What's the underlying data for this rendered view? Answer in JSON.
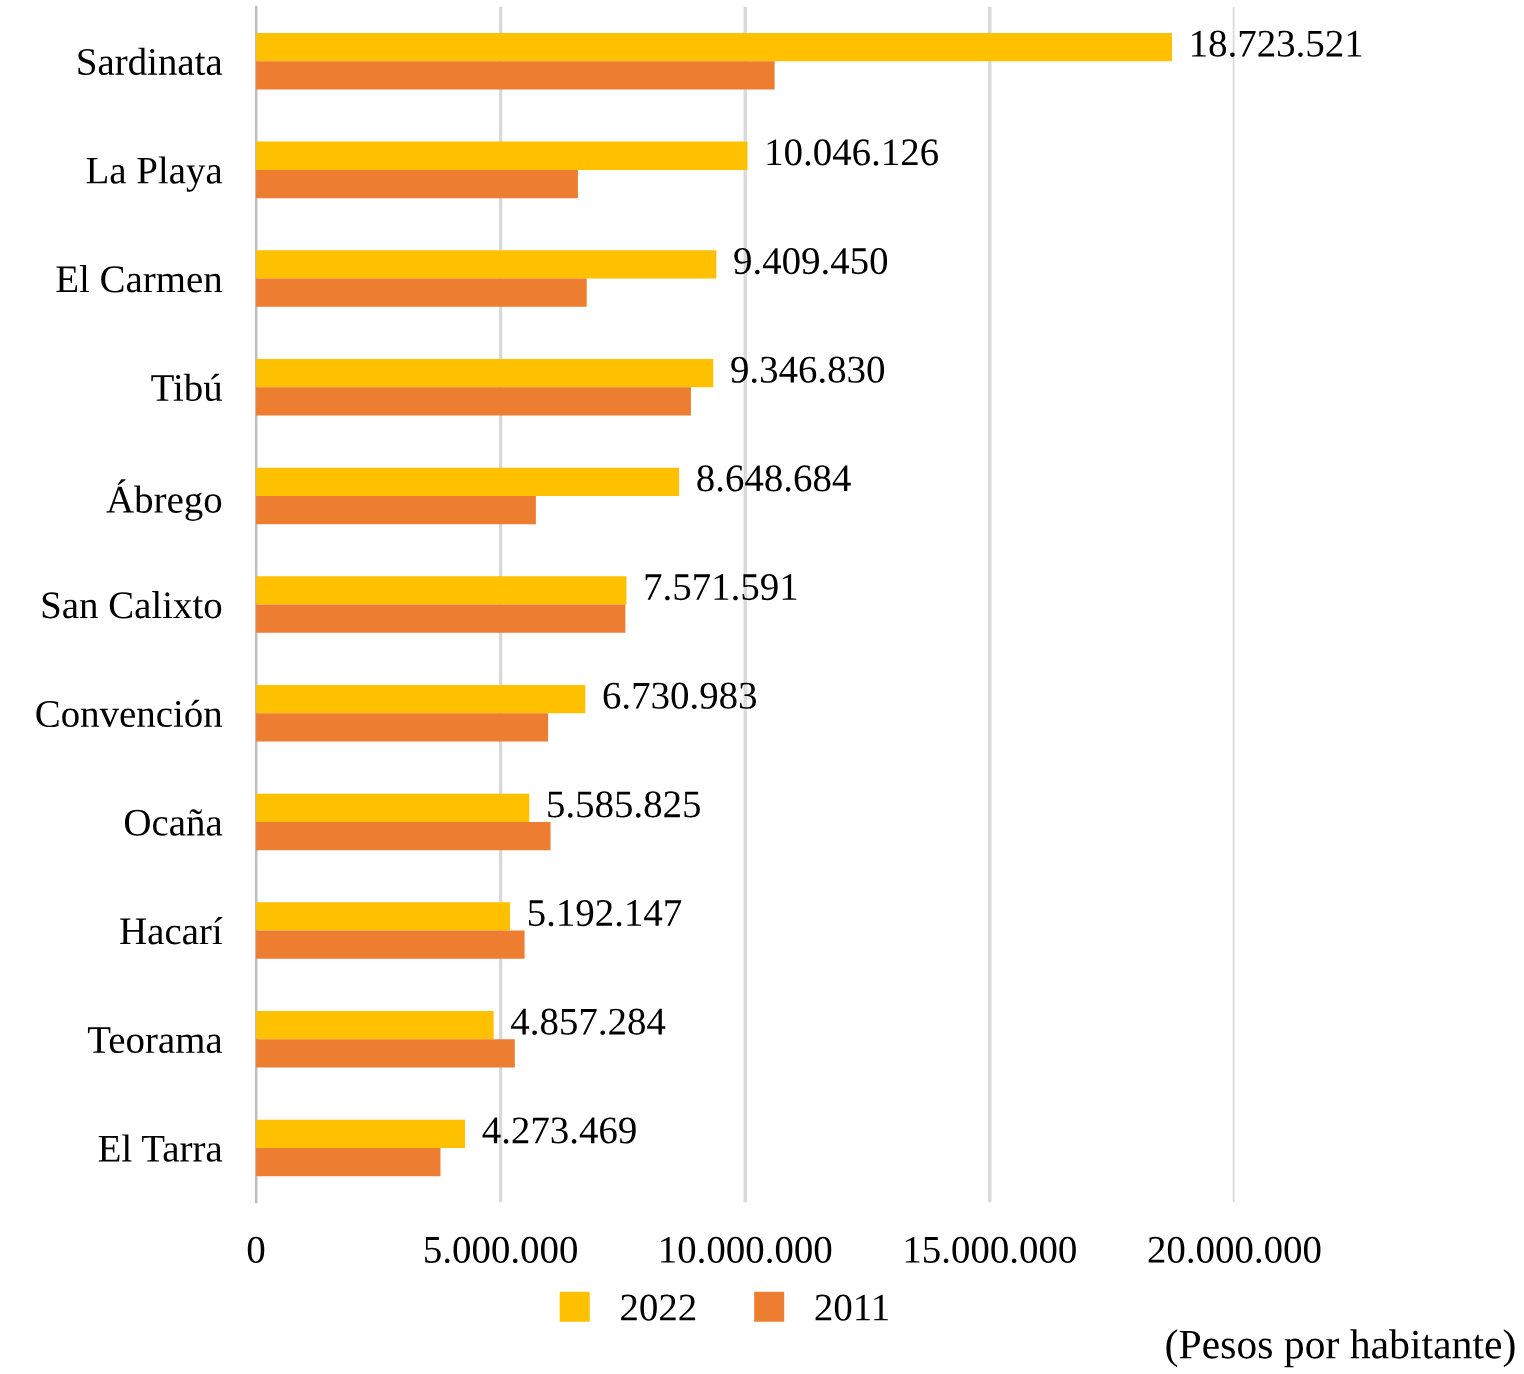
{
  "chart_data": {
    "type": "bar",
    "orientation": "horizontal",
    "categories": [
      "Sardinata",
      "La Playa",
      "El Carmen",
      "Tibú",
      "Ábrego",
      "San Calixto",
      "Convención",
      "Ocaña",
      "Hacarí",
      "Teorama",
      "El Tarra"
    ],
    "series": [
      {
        "name": "2022",
        "color": "#ffc000",
        "values": [
          18723521,
          10046126,
          9409450,
          9346830,
          8648684,
          7571591,
          6730983,
          5585825,
          5192147,
          4857284,
          4273469
        ],
        "value_labels": [
          "18.723.521",
          "10.046.126",
          "9.409.450",
          "9.346.830",
          "8.648.684",
          "7.571.591",
          "6.730.983",
          "5.585.825",
          "5.192.147",
          "4.857.284",
          "4.273.469"
        ]
      },
      {
        "name": "2011",
        "color": "#ed7d31",
        "values": [
          10600000,
          6580000,
          6760000,
          8890000,
          5720000,
          7550000,
          5970000,
          6020000,
          5490000,
          5290000,
          3770000
        ]
      }
    ],
    "xlim": [
      0,
      20000000
    ],
    "xticks": [
      {
        "value": 0,
        "label": "0"
      },
      {
        "value": 5000000,
        "label": "5.000.000"
      },
      {
        "value": 10000000,
        "label": "10.000.000"
      },
      {
        "value": 15000000,
        "label": "15.000.000"
      },
      {
        "value": 20000000,
        "label": "20.000.000"
      }
    ],
    "grid": "x",
    "legend": "bottom",
    "annotations": [
      "(Pesos por habitante)"
    ]
  }
}
